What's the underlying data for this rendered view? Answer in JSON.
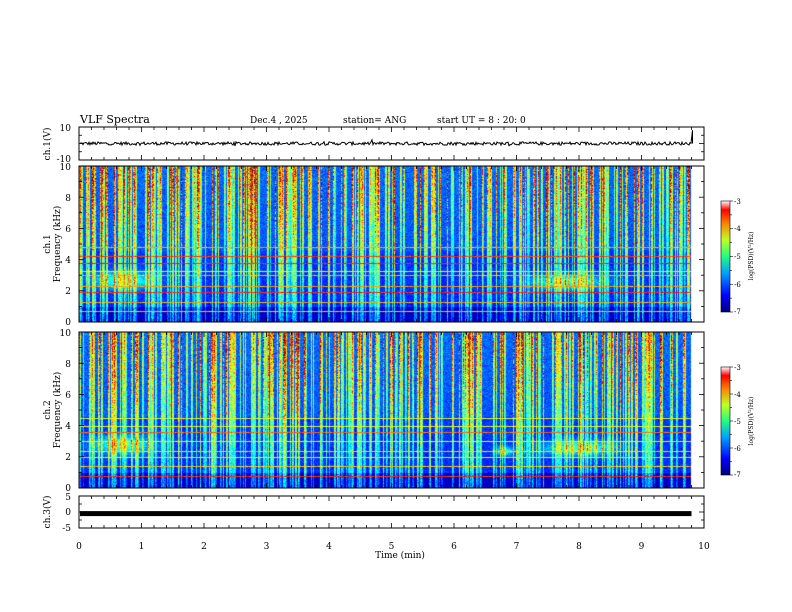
{
  "header": {
    "title": "VLF Spectra",
    "date": "Dec.4 , 2025",
    "station": "station= ANG",
    "start": "start UT = 8 : 20: 0"
  },
  "chart_data": [
    {
      "type": "line",
      "name": "ch1-waveform",
      "ylabel": "ch.1(V)",
      "ylim": [
        -10,
        10
      ],
      "yticks": [
        "10",
        "-10"
      ],
      "xlim": [
        0,
        10
      ],
      "approx_level": 0,
      "noise_amplitude": 1
    },
    {
      "type": "heatmap",
      "name": "ch1-spectrogram",
      "ylabel": "ch.1\nFrequency (kHz)",
      "ylim": [
        0,
        10
      ],
      "yticks": [
        "0",
        "2",
        "4",
        "6",
        "8",
        "10"
      ],
      "xlim": [
        0,
        10
      ],
      "features": {
        "hiss_bursts": [
          {
            "t_center": 0.7,
            "t_width": 1.0,
            "f_center": 2.7,
            "f_width": 1.2
          },
          {
            "t_center": 7.8,
            "t_width": 1.2,
            "f_center": 2.6,
            "f_width": 1.0
          }
        ],
        "narrowband_lines_khz": [
          0.7,
          1.3,
          1.9,
          2.3,
          3.0,
          3.3,
          3.8,
          4.2,
          4.8
        ],
        "sferic_density_per_min": 30
      },
      "colorbar": {
        "label": "log(PSD)(V²/Hz)",
        "ticks": [
          "-3",
          "-4",
          "-5",
          "-6",
          "-7"
        ],
        "range": [
          -7,
          -3
        ]
      }
    },
    {
      "type": "heatmap",
      "name": "ch2-spectrogram",
      "ylabel": "ch.2\nFrequency (kHz)",
      "ylim": [
        0,
        10
      ],
      "yticks": [
        "0",
        "2",
        "4",
        "6",
        "8",
        "10"
      ],
      "xlim": [
        0,
        10
      ],
      "features": {
        "hiss_bursts": [
          {
            "t_center": 0.7,
            "t_width": 1.0,
            "f_center": 2.8,
            "f_width": 1.3
          },
          {
            "t_center": 6.8,
            "t_width": 0.3,
            "f_center": 2.4,
            "f_width": 0.6
          },
          {
            "t_center": 8.0,
            "t_width": 1.2,
            "f_center": 2.6,
            "f_width": 1.0
          }
        ],
        "narrowband_lines_khz": [
          0.8,
          1.4,
          2.0,
          2.4,
          3.0,
          3.6,
          4.0,
          4.5
        ],
        "sferic_density_per_min": 30
      },
      "colorbar": {
        "label": "log(PSD)(V²/Hz)",
        "ticks": [
          "-3",
          "-4",
          "-5",
          "-6",
          "-7"
        ],
        "range": [
          -7,
          -3
        ]
      }
    },
    {
      "type": "line",
      "name": "ch3-waveform",
      "ylabel": "ch.3(V)",
      "ylim": [
        -5,
        5
      ],
      "yticks": [
        "5",
        "0",
        "-5"
      ],
      "xlim": [
        0,
        10
      ],
      "approx_level": -0.5
    }
  ],
  "xaxis": {
    "label": "Time (min)",
    "ticks": [
      "0",
      "1",
      "2",
      "3",
      "4",
      "5",
      "6",
      "7",
      "8",
      "9",
      "10"
    ]
  }
}
